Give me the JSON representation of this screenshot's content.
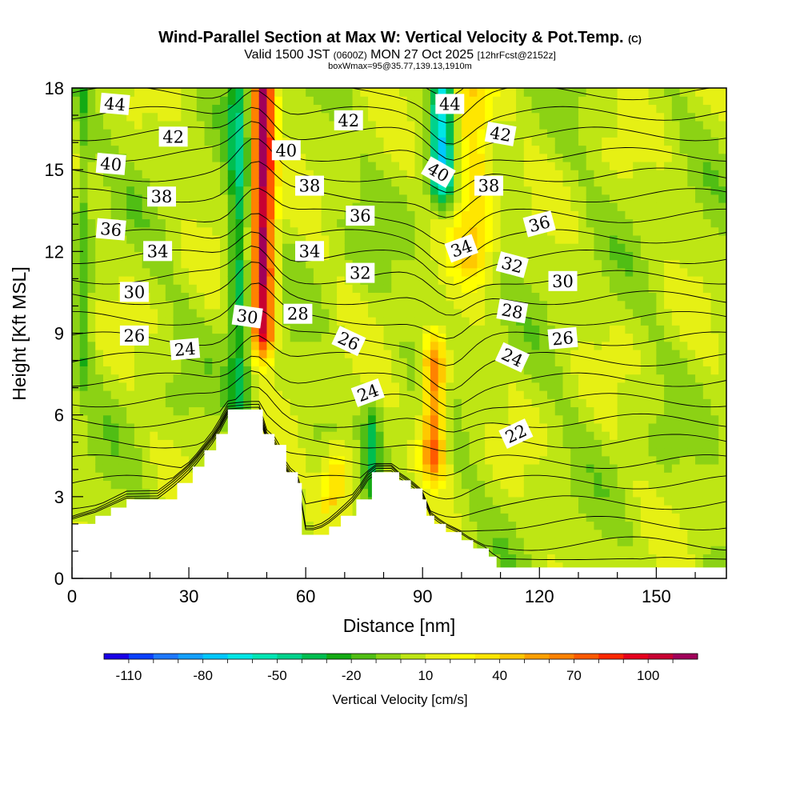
{
  "titles": {
    "main": "Wind-Parallel Section at Max W: Vertical Velocity & Pot.Temp.",
    "copyright": "(C)",
    "valid_prefix": "Valid 1500 JST",
    "valid_utc": "(0600Z)",
    "valid_date": "MON 27 Oct 2025",
    "forecast": "[12hrFcst@2152z]",
    "box": "boxWmax=95@35.77,139.13,1910m"
  },
  "chart_data": {
    "type": "heatmap",
    "title": "Wind-Parallel Section at Max W: Vertical Velocity & Pot.Temp.",
    "xlabel": "Distance [nm]",
    "ylabel": "Height [Kft MSL]",
    "xlim": [
      0,
      168
    ],
    "ylim": [
      0,
      18
    ],
    "x_ticks": [
      0,
      30,
      60,
      90,
      120,
      150
    ],
    "y_ticks": [
      0,
      3,
      6,
      9,
      12,
      15,
      18
    ],
    "colorbar": {
      "label": "Vertical Velocity [cm/s]",
      "tick_labels": [
        "-110",
        "-80",
        "-50",
        "-20",
        "10",
        "40",
        "70",
        "100"
      ],
      "tick_values": [
        -110,
        -80,
        -50,
        -20,
        10,
        40,
        70,
        100
      ],
      "range": [
        -120,
        120
      ],
      "step": 10,
      "colors": [
        "#1a00e6",
        "#0a40ff",
        "#1e78ff",
        "#14a0ff",
        "#00c8ff",
        "#00e6e6",
        "#00e6b4",
        "#00d28c",
        "#00be50",
        "#14aa14",
        "#50be14",
        "#8cd214",
        "#bee614",
        "#e6f014",
        "#ffff00",
        "#ffe600",
        "#ffc800",
        "#ffa000",
        "#ff8200",
        "#ff5a00",
        "#ff2800",
        "#e6001e",
        "#c80032",
        "#a0005a"
      ]
    },
    "terrain": [
      [
        0,
        2.0
      ],
      [
        6,
        2.3
      ],
      [
        10,
        2.6
      ],
      [
        14,
        2.9
      ],
      [
        22,
        2.9
      ],
      [
        27,
        3.5
      ],
      [
        31,
        4.1
      ],
      [
        34,
        4.7
      ],
      [
        37,
        5.3
      ],
      [
        40,
        6.2
      ],
      [
        48,
        6.2
      ],
      [
        49,
        5.3
      ],
      [
        52,
        4.9
      ],
      [
        55,
        3.9
      ],
      [
        58,
        3.5
      ],
      [
        59,
        1.6
      ],
      [
        63,
        1.6
      ],
      [
        66,
        1.9
      ],
      [
        69,
        2.3
      ],
      [
        73,
        2.9
      ],
      [
        77,
        3.9
      ],
      [
        82,
        3.9
      ],
      [
        84,
        3.6
      ],
      [
        87,
        3.3
      ],
      [
        90,
        2.9
      ],
      [
        91,
        2.3
      ],
      [
        93,
        2.0
      ],
      [
        96,
        1.7
      ],
      [
        100,
        1.4
      ],
      [
        103,
        1.1
      ],
      [
        107,
        0.8
      ],
      [
        109,
        0.4
      ],
      [
        168,
        0.4
      ]
    ],
    "updrafts": [
      {
        "x": 49,
        "x_half_width": 3,
        "y_top": 18,
        "y_bottom": 9,
        "max_cm_s": 110
      },
      {
        "x": 93,
        "x_half_width": 3,
        "y_top": 8,
        "y_bottom": 4.5,
        "max_cm_s": 70
      },
      {
        "x": 68,
        "x_half_width": 4,
        "y_top": 4,
        "y_bottom": 2,
        "max_cm_s": 45
      },
      {
        "x": 103,
        "x_half_width": 5,
        "y_top": 18,
        "y_bottom": 12,
        "max_cm_s": 40
      }
    ],
    "downdrafts": [
      {
        "x": 43,
        "x_half_width": 3,
        "y_top": 18,
        "y_bottom": 6.5,
        "min_cm_s": -40
      },
      {
        "x": 95,
        "x_half_width": 3,
        "y_top": 18,
        "y_bottom": 14.5,
        "min_cm_s": -70
      },
      {
        "x": 3,
        "x_half_width": 2,
        "y_top": 18,
        "y_bottom": 8,
        "min_cm_s": -20
      },
      {
        "x": 77,
        "x_half_width": 2,
        "y_top": 5.5,
        "y_bottom": 3.5,
        "min_cm_s": -30
      }
    ],
    "pot_temp_contours": {
      "interval": 1,
      "labeled_values": [
        44,
        42,
        40,
        38,
        36,
        34,
        32,
        30,
        28,
        26,
        24,
        22
      ],
      "labels": [
        {
          "text": "44",
          "x": 11,
          "y": 17.4,
          "angle": 5
        },
        {
          "text": "42",
          "x": 26,
          "y": 16.2,
          "angle": 0
        },
        {
          "text": "40",
          "x": 10,
          "y": 15.2,
          "angle": 5
        },
        {
          "text": "38",
          "x": 23,
          "y": 14.0,
          "angle": 0
        },
        {
          "text": "36",
          "x": 10,
          "y": 12.8,
          "angle": 5
        },
        {
          "text": "34",
          "x": 22,
          "y": 12.0,
          "angle": 0
        },
        {
          "text": "30",
          "x": 16,
          "y": 10.5,
          "angle": 0
        },
        {
          "text": "26",
          "x": 16,
          "y": 8.9,
          "angle": 0
        },
        {
          "text": "24",
          "x": 29,
          "y": 8.4,
          "angle": -5
        },
        {
          "text": "30",
          "x": 45,
          "y": 9.6,
          "angle": 8
        },
        {
          "text": "40",
          "x": 55,
          "y": 15.7,
          "angle": 0
        },
        {
          "text": "38",
          "x": 61,
          "y": 14.4,
          "angle": 0
        },
        {
          "text": "34",
          "x": 61,
          "y": 12.0,
          "angle": 0
        },
        {
          "text": "28",
          "x": 58,
          "y": 9.7,
          "angle": 0
        },
        {
          "text": "42",
          "x": 71,
          "y": 16.8,
          "angle": 0
        },
        {
          "text": "36",
          "x": 74,
          "y": 13.3,
          "angle": 0
        },
        {
          "text": "32",
          "x": 74,
          "y": 11.2,
          "angle": 0
        },
        {
          "text": "26",
          "x": 71,
          "y": 8.7,
          "angle": 25
        },
        {
          "text": "24",
          "x": 76,
          "y": 6.8,
          "angle": -20
        },
        {
          "text": "44",
          "x": 97,
          "y": 17.4,
          "angle": 0
        },
        {
          "text": "40",
          "x": 94,
          "y": 14.9,
          "angle": 30
        },
        {
          "text": "42",
          "x": 110,
          "y": 16.3,
          "angle": 10
        },
        {
          "text": "38",
          "x": 107,
          "y": 14.4,
          "angle": 0
        },
        {
          "text": "34",
          "x": 100,
          "y": 12.1,
          "angle": -20
        },
        {
          "text": "36",
          "x": 120,
          "y": 13.0,
          "angle": -15
        },
        {
          "text": "32",
          "x": 113,
          "y": 11.5,
          "angle": 15
        },
        {
          "text": "28",
          "x": 113,
          "y": 9.8,
          "angle": 10
        },
        {
          "text": "30",
          "x": 126,
          "y": 10.9,
          "angle": 0
        },
        {
          "text": "26",
          "x": 126,
          "y": 8.8,
          "angle": -5
        },
        {
          "text": "24",
          "x": 113,
          "y": 8.1,
          "angle": 25
        },
        {
          "text": "22",
          "x": 114,
          "y": 5.3,
          "angle": -25
        }
      ]
    }
  }
}
